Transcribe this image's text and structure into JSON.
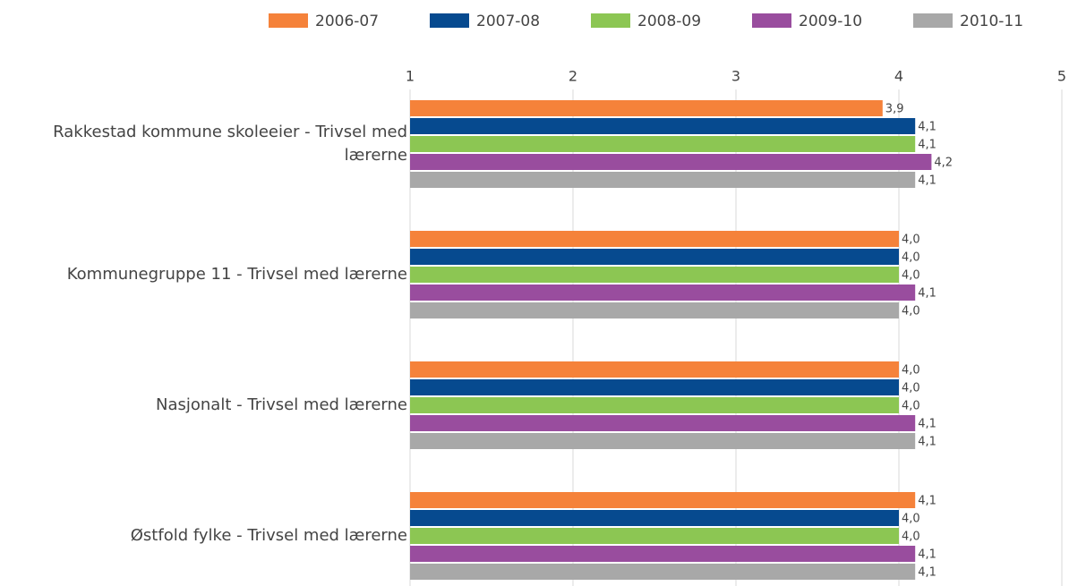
{
  "chart_data": {
    "type": "bar",
    "orientation": "horizontal",
    "categories": [
      "Rakkestad kommune skoleeier - Trivsel med lærerne",
      "Kommunegruppe 11 - Trivsel med lærerne",
      "Nasjonalt - Trivsel med lærerne",
      "Østfold fylke - Trivsel med lærerne"
    ],
    "series": [
      {
        "name": "2006-07",
        "color": "#f5823a",
        "values": [
          3.9,
          4.0,
          4.0,
          4.1
        ],
        "value_labels": [
          "3,9",
          "4,0",
          "4,0",
          "4,1"
        ]
      },
      {
        "name": "2007-08",
        "color": "#064a8f",
        "values": [
          4.1,
          4.0,
          4.0,
          4.0
        ],
        "value_labels": [
          "4,1",
          "4,0",
          "4,0",
          "4,0"
        ]
      },
      {
        "name": "2008-09",
        "color": "#8cc653",
        "values": [
          4.1,
          4.0,
          4.0,
          4.0
        ],
        "value_labels": [
          "4,1",
          "4,0",
          "4,0",
          "4,0"
        ]
      },
      {
        "name": "2009-10",
        "color": "#994d9e",
        "values": [
          4.2,
          4.1,
          4.1,
          4.1
        ],
        "value_labels": [
          "4,2",
          "4,1",
          "4,1",
          "4,1"
        ]
      },
      {
        "name": "2010-11",
        "color": "#a8a8a8",
        "values": [
          4.1,
          4.0,
          4.1,
          4.1
        ],
        "value_labels": [
          "4,1",
          "4,0",
          "4,1",
          "4,1"
        ]
      }
    ],
    "xlim": [
      1,
      5
    ],
    "xticks": [
      1,
      2,
      3,
      4,
      5
    ],
    "grid": true,
    "legend": "top"
  }
}
